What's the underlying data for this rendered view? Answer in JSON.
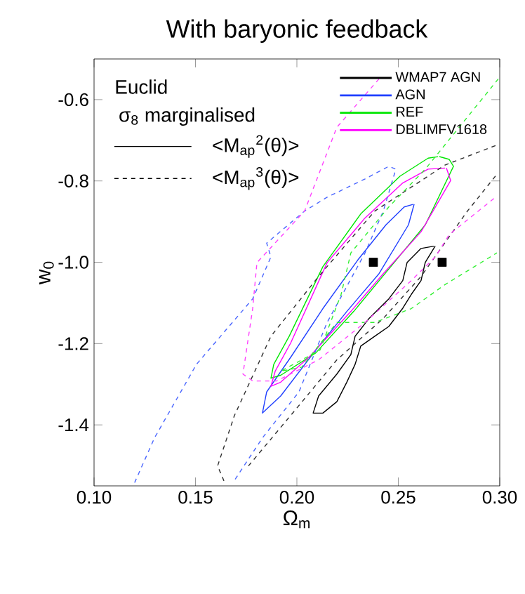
{
  "chart_data": {
    "type": "line",
    "title": "With baryonic feedback",
    "xlabel": "Ω$_{m}$",
    "ylabel": "w$_{0}$",
    "xlim": [
      0.1,
      0.3
    ],
    "ylim": [
      -1.55,
      -0.5
    ],
    "xticks": [
      {
        "value": 0.1,
        "label": "0.10"
      },
      {
        "value": 0.15,
        "label": "0.15"
      },
      {
        "value": 0.2,
        "label": "0.20"
      },
      {
        "value": 0.25,
        "label": "0.25"
      },
      {
        "value": 0.3,
        "label": "0.30"
      }
    ],
    "yticks": [
      {
        "value": -1.4,
        "label": "-1.4"
      },
      {
        "value": -1.2,
        "label": "-1.2"
      },
      {
        "value": -1.0,
        "label": "-1.0"
      },
      {
        "value": -0.8,
        "label": "-0.8"
      },
      {
        "value": -0.6,
        "label": "-0.6"
      }
    ],
    "legend": "top right",
    "line_style": "solid",
    "marker": "none",
    "annotations": [
      "Euclid",
      "σ$_{8}$ marginalised",
      "<M$_{ap}$$^{2}$(θ)>",
      "<M$_{ap}$$^{3}$(θ)>"
    ],
    "series": [
      {
        "name": "WMAP7 AGN",
        "color": "#000000",
        "x": [
          0.2682,
          0.2633,
          0.2612,
          0.2564,
          0.2522,
          0.2453,
          0.2384,
          0.2315,
          0.2287,
          0.2246,
          0.2197,
          0.2128,
          0.208,
          0.2107,
          0.2197,
          0.2266,
          0.2287,
          0.2356,
          0.2453,
          0.2522,
          0.2543,
          0.2612,
          0.2675
        ],
        "values": [
          -0.96,
          -1.0,
          -1.045,
          -1.079,
          -1.113,
          -1.158,
          -1.182,
          -1.206,
          -1.251,
          -1.295,
          -1.343,
          -1.371,
          -1.371,
          -1.329,
          -1.275,
          -1.227,
          -1.182,
          -1.138,
          -1.09,
          -1.045,
          -1.001,
          -0.966,
          -0.9605
        ]
      },
      {
        "name": "AGN",
        "color": "#1f3fff",
        "x": [
          0.2578,
          0.255,
          0.2405,
          0.2246,
          0.2093,
          0.192,
          0.183,
          0.1851,
          0.1969,
          0.2128,
          0.2301,
          0.2439,
          0.2529,
          0.2572
        ],
        "values": [
          -0.857,
          -0.908,
          -1.028,
          -1.121,
          -1.216,
          -1.329,
          -1.371,
          -1.319,
          -1.234,
          -1.114,
          -0.994,
          -0.908,
          -0.864,
          -0.8578
        ]
      },
      {
        "name": "REF",
        "color": "#00e600",
        "x": [
          0.2702,
          0.2751,
          0.2772,
          0.2633,
          0.2446,
          0.228,
          0.2093,
          0.192,
          0.1872,
          0.1886,
          0.1962,
          0.2128,
          0.2315,
          0.2509,
          0.2647,
          0.2696
        ],
        "values": [
          -0.74,
          -0.747,
          -0.764,
          -0.908,
          -1.021,
          -1.121,
          -1.223,
          -1.278,
          -1.285,
          -1.251,
          -1.182,
          -1.011,
          -0.881,
          -0.788,
          -0.744,
          -0.7403
        ]
      },
      {
        "name": "DBLIMFV1618",
        "color": "#ff00ff",
        "x": [
          0.2737,
          0.2758,
          0.2612,
          0.2426,
          0.2266,
          0.2059,
          0.192,
          0.1872,
          0.1893,
          0.1969,
          0.2149,
          0.2336,
          0.2522,
          0.2647,
          0.273
        ],
        "values": [
          -0.768,
          -0.799,
          -0.925,
          -1.028,
          -1.121,
          -1.234,
          -1.295,
          -1.305,
          -1.268,
          -1.199,
          -1.001,
          -0.891,
          -0.805,
          -0.771,
          -0.7683
        ]
      },
      {
        "color": "#303030",
        "line_style": "dashed",
        "x": [
          0.2979,
          0.273,
          0.2384,
          0.2107,
          0.1872,
          0.1692,
          0.1609,
          0.1644,
          null,
          0.1761,
          0.1969,
          0.2197,
          0.2426,
          0.2612,
          0.2841,
          0.2979
        ],
        "values": [
          -0.713,
          -0.761,
          -0.874,
          -1.035,
          -1.182,
          -1.377,
          -1.501,
          -1.542,
          null,
          -1.501,
          -1.377,
          -1.24,
          -1.138,
          -1.035,
          -0.874,
          -0.788
        ]
      },
      {
        "color": "#4a66ff",
        "line_style": "dashed",
        "x": [
          0.12,
          0.1298,
          0.1505,
          0.1782,
          0.1872,
          0.1851,
          0.2038,
          0.2149,
          0.2336,
          0.2453,
          0.2488,
          0.2426,
          0.2336,
          0.2149,
          0.201,
          0.183,
          0.1685
        ],
        "values": [
          -1.542,
          -1.432,
          -1.251,
          -1.09,
          -0.987,
          -0.953,
          -0.874,
          -0.84,
          -0.795,
          -0.764,
          -0.771,
          -0.874,
          -0.977,
          -1.148,
          -1.319,
          -1.432,
          -1.542
        ]
      },
      {
        "color": "#33f033",
        "line_style": "dashed",
        "x": [
          0.2993,
          0.2633,
          0.2453,
          0.2266,
          0.2218,
          0.2114,
          0.192,
          0.2024,
          0.2197,
          0.2384,
          0.2564,
          0.273,
          0.2986
        ],
        "values": [
          -0.549,
          -0.771,
          -0.864,
          -0.977,
          -1.079,
          -1.216,
          -1.268,
          -1.258,
          -1.148,
          -1.148,
          -1.114,
          -1.055,
          -0.977
        ]
      },
      {
        "color": "#ff40ff",
        "line_style": "dashed",
        "x": [
          0.2405,
          0.2197,
          0.2038,
          0.1803,
          0.1782,
          0.1734,
          0.1782,
          0.19,
          0.2107,
          0.2336,
          0.2564,
          0.2682,
          0.2751,
          0.2979
        ],
        "values": [
          -0.549,
          -0.668,
          -0.874,
          -1.001,
          -1.114,
          -1.275,
          -1.292,
          -1.292,
          -1.24,
          -1.148,
          -1.045,
          -0.987,
          -0.932,
          -0.84
        ]
      },
      {
        "type": "scatter",
        "marker": "square",
        "color": "#000000",
        "x": [
          0.2377,
          0.2716
        ],
        "values": [
          -1.0,
          -1.0
        ]
      }
    ]
  }
}
